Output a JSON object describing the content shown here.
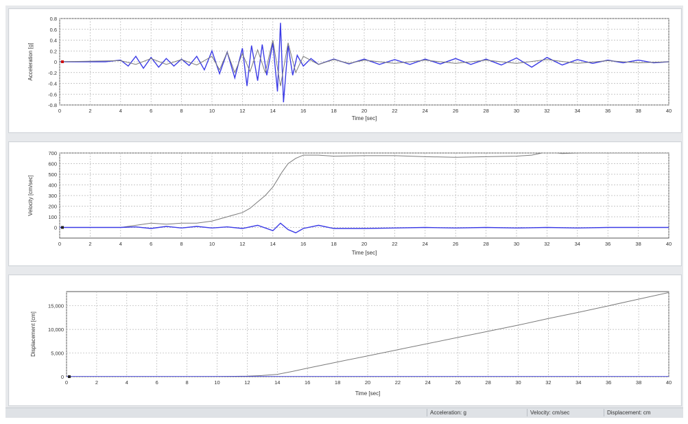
{
  "status_bar": {
    "acceleration_unit": "Acceleration: g",
    "velocity_unit": "Velocity: cm/sec",
    "displacement_unit": "Displacement: cm"
  },
  "colors": {
    "series_blue": "#3a3ae6",
    "series_gray": "#7a7a7a",
    "grid": "#b5b5b5",
    "marker_red": "#d01010"
  },
  "chart_data": [
    {
      "type": "line",
      "title": "",
      "xlabel": "Time [sec]",
      "ylabel": "Acceleration [g]",
      "xlim": [
        0,
        40
      ],
      "ylim": [
        -0.8,
        0.8
      ],
      "xticks": [
        "0",
        "2",
        "4",
        "6",
        "8",
        "10",
        "12",
        "14",
        "16",
        "18",
        "20",
        "22",
        "24",
        "26",
        "28",
        "30",
        "32",
        "34",
        "36",
        "38",
        "40"
      ],
      "yticks": [
        "0.8",
        "0.6",
        "0.4",
        "0.2",
        "0",
        "-0.2",
        "-0.4",
        "-0.6",
        "-0.8"
      ],
      "grid": true,
      "series": [
        {
          "style": "blue",
          "x": [
            0,
            1,
            2,
            3,
            4,
            4.5,
            5,
            5.5,
            6,
            6.5,
            7,
            7.5,
            8,
            8.5,
            9,
            9.5,
            10,
            10.5,
            11,
            11.5,
            12,
            12.3,
            12.6,
            13,
            13.3,
            13.6,
            14,
            14.3,
            14.5,
            14.7,
            15,
            15.3,
            15.6,
            16,
            16.5,
            17,
            18,
            19,
            20,
            21,
            22,
            23,
            24,
            25,
            26,
            27,
            28,
            29,
            30,
            31,
            32,
            33,
            34,
            35,
            36,
            37,
            38,
            39,
            40
          ],
          "y": [
            0,
            0,
            0,
            0,
            0.03,
            -0.08,
            0.1,
            -0.12,
            0.08,
            -0.1,
            0.06,
            -0.08,
            0.05,
            -0.07,
            0.1,
            -0.15,
            0.2,
            -0.22,
            0.18,
            -0.3,
            0.25,
            -0.45,
            0.3,
            -0.35,
            0.32,
            -0.25,
            0.35,
            -0.55,
            0.72,
            -0.75,
            0.3,
            -0.25,
            0.12,
            -0.08,
            0.06,
            -0.05,
            0.05,
            -0.04,
            0.05,
            -0.05,
            0.04,
            -0.05,
            0.05,
            -0.04,
            0.06,
            -0.05,
            0.05,
            -0.06,
            0.07,
            -0.1,
            0.08,
            -0.06,
            0.04,
            -0.03,
            0.03,
            -0.02,
            0.03,
            -0.02,
            0
          ]
        },
        {
          "style": "gray",
          "x": [
            0,
            4,
            5,
            6,
            7,
            8,
            9,
            10,
            10.5,
            11,
            11.5,
            12,
            12.5,
            13,
            13.5,
            14,
            14.5,
            15,
            15.5,
            16,
            17,
            18,
            19,
            20,
            22,
            24,
            26,
            28,
            30,
            32,
            34,
            36,
            38,
            40
          ],
          "y": [
            0,
            0.02,
            -0.05,
            0.06,
            -0.05,
            0.04,
            -0.06,
            0.1,
            -0.15,
            0.18,
            -0.2,
            0.15,
            -0.18,
            0.22,
            -0.2,
            0.4,
            -0.45,
            0.35,
            -0.2,
            0.1,
            -0.05,
            0.04,
            -0.03,
            0.03,
            -0.03,
            0.03,
            -0.03,
            0.03,
            -0.03,
            0.04,
            -0.03,
            0.02,
            -0.02,
            0
          ]
        }
      ]
    },
    {
      "type": "line",
      "title": "",
      "xlabel": "Time [sec]",
      "ylabel": "Velocity [cm/sec]",
      "xlim": [
        0,
        40
      ],
      "ylim": [
        -100,
        700
      ],
      "xticks": [
        "0",
        "2",
        "4",
        "6",
        "8",
        "10",
        "12",
        "14",
        "16",
        "18",
        "20",
        "22",
        "24",
        "26",
        "28",
        "30",
        "32",
        "34",
        "36",
        "38",
        "40"
      ],
      "yticks": [
        "700",
        "600",
        "500",
        "400",
        "300",
        "200",
        "100",
        "0"
      ],
      "grid": true,
      "series": [
        {
          "style": "gray",
          "x": [
            0,
            4,
            5,
            6,
            7,
            8,
            9,
            10,
            11,
            11.5,
            12,
            12.5,
            13,
            13.5,
            14,
            14.3,
            14.6,
            15,
            15.5,
            16,
            17,
            18,
            20,
            22,
            24,
            26,
            28,
            30,
            31,
            32,
            33,
            34,
            36,
            38,
            40
          ],
          "y": [
            0,
            0,
            20,
            40,
            30,
            40,
            40,
            60,
            100,
            120,
            140,
            180,
            240,
            300,
            380,
            450,
            520,
            600,
            650,
            680,
            680,
            670,
            675,
            675,
            665,
            660,
            665,
            670,
            680,
            710,
            695,
            700,
            700,
            700,
            700
          ]
        },
        {
          "style": "blue",
          "x": [
            0,
            2,
            4,
            5,
            6,
            7,
            8,
            9,
            10,
            11,
            12,
            13,
            14,
            14.5,
            15,
            15.5,
            16,
            17,
            18,
            20,
            22,
            24,
            26,
            28,
            30,
            32,
            34,
            36,
            38,
            40
          ],
          "y": [
            0,
            0,
            0,
            5,
            -10,
            10,
            -5,
            10,
            -5,
            5,
            -10,
            20,
            -30,
            40,
            -20,
            -50,
            -10,
            20,
            -10,
            -10,
            -5,
            0,
            -5,
            0,
            -5,
            0,
            -5,
            0,
            0,
            0
          ]
        }
      ]
    },
    {
      "type": "line",
      "title": "",
      "xlabel": "Time [sec]",
      "ylabel": "Displacement [cm]",
      "xlim": [
        0,
        40
      ],
      "ylim": [
        0,
        18000
      ],
      "xticks": [
        "0",
        "2",
        "4",
        "6",
        "8",
        "10",
        "12",
        "14",
        "16",
        "18",
        "20",
        "22",
        "24",
        "26",
        "28",
        "30",
        "32",
        "34",
        "36",
        "38",
        "40"
      ],
      "yticks": [
        "15,000",
        "10,000",
        "5,000",
        "0"
      ],
      "grid": true,
      "series": [
        {
          "style": "gray",
          "x": [
            0,
            4,
            8,
            10,
            12,
            13,
            14,
            15,
            16,
            18,
            20,
            22,
            24,
            26,
            28,
            30,
            32,
            34,
            36,
            38,
            40
          ],
          "y": [
            0,
            0,
            0,
            20,
            100,
            250,
            500,
            1100,
            1800,
            3100,
            4400,
            5700,
            7000,
            8300,
            9600,
            10900,
            12300,
            13600,
            15000,
            16400,
            17800
          ]
        },
        {
          "style": "blue",
          "x": [
            0,
            40
          ],
          "y": [
            0,
            0
          ]
        }
      ]
    }
  ]
}
